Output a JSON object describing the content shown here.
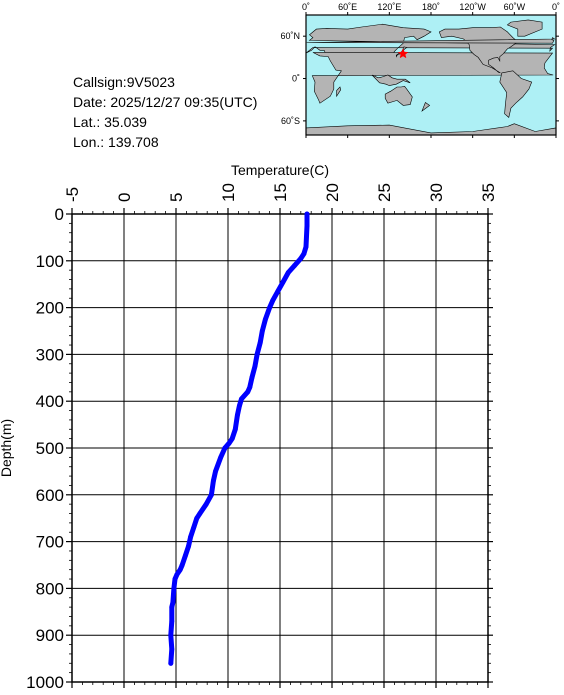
{
  "station": {
    "callsign_line": "Callsign:9V5023",
    "date_line": "Date:  2025/12/27 09:35(UTC)",
    "lat_line": "Lat.:   35.039",
    "lon_line": "Lon.:  139.708"
  },
  "map": {
    "top_labels": [
      "0˚",
      "60˚E",
      "120˚E",
      "180˚",
      "120˚W",
      "60˚W",
      "0˚"
    ],
    "left_labels": [
      "60˚N",
      "0˚",
      "60˚S"
    ],
    "ocean_color": "#aef0f5",
    "land_color": "#b4b4b4",
    "marker_color": "#ff0000",
    "marker_icon": "star-icon",
    "marker": {
      "lat": 35.039,
      "lon": 139.708
    }
  },
  "chart_data": {
    "type": "line",
    "title": "",
    "xlabel": "Temperature(C)",
    "ylabel": "Depth(m)",
    "xlim": [
      -5,
      35
    ],
    "ylim": [
      0,
      1000
    ],
    "y_inverted": true,
    "x_axis_position": "top",
    "grid": true,
    "x_ticks": [
      "-5",
      "0",
      "5",
      "10",
      "15",
      "20",
      "25",
      "30",
      "35"
    ],
    "y_ticks": [
      "0",
      "100",
      "200",
      "300",
      "400",
      "500",
      "600",
      "700",
      "800",
      "900",
      "1000"
    ],
    "series_color": "#0000ff",
    "series": [
      {
        "x": [
          17.6,
          17.6,
          17.5,
          17.3,
          17.0,
          16.4,
          15.8,
          15.3,
          14.8,
          14.3,
          14.0,
          13.6,
          13.3,
          13.1,
          12.8,
          12.6,
          12.3,
          12.1,
          11.9,
          11.3,
          11.1,
          10.9,
          10.7,
          10.4,
          10.1,
          9.7,
          9.3,
          8.8,
          8.6,
          8.4,
          7.9,
          7.3,
          7.0,
          6.7,
          6.4,
          6.2,
          5.9,
          5.6,
          5.4,
          5.1,
          4.9,
          4.8,
          4.7,
          4.6,
          4.6,
          4.5,
          4.6,
          4.5
        ],
        "y": [
          0,
          25,
          70,
          85,
          95,
          110,
          125,
          145,
          165,
          185,
          200,
          225,
          250,
          275,
          300,
          325,
          350,
          370,
          380,
          395,
          410,
          430,
          460,
          480,
          490,
          500,
          520,
          550,
          570,
          600,
          620,
          640,
          650,
          670,
          690,
          710,
          730,
          750,
          760,
          770,
          780,
          800,
          830,
          840,
          870,
          900,
          930,
          960
        ]
      }
    ]
  }
}
